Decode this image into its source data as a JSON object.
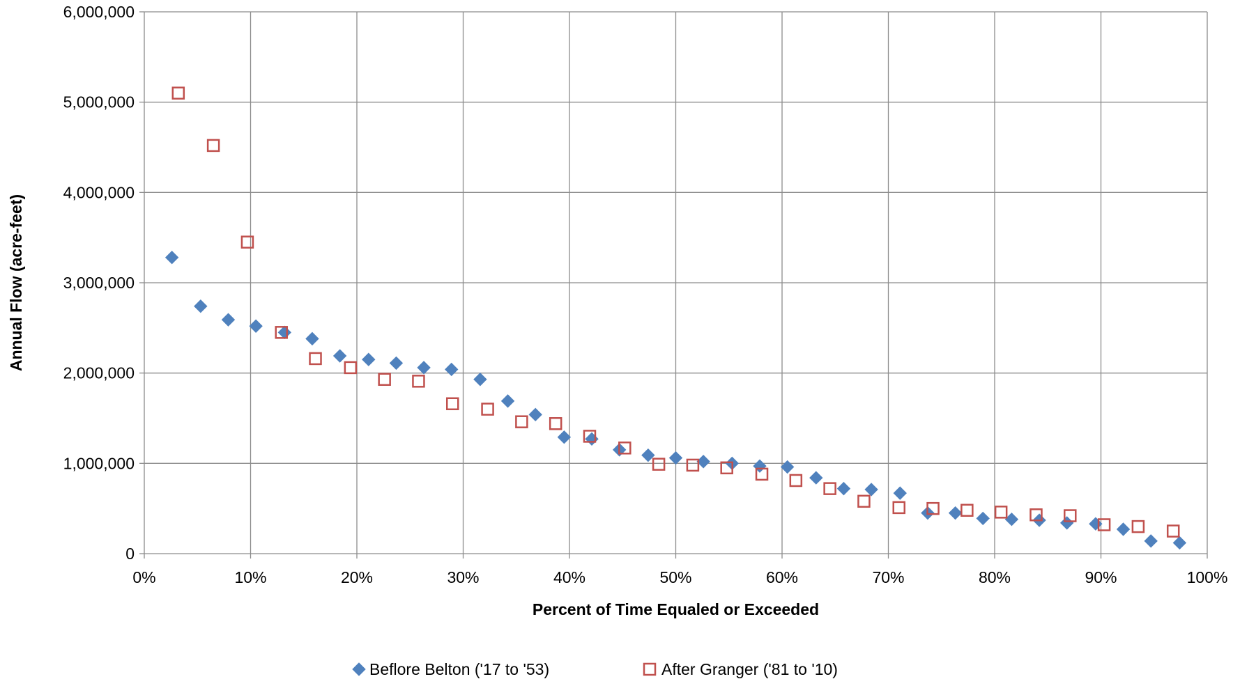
{
  "chart_data": {
    "type": "scatter",
    "xlabel": "Percent of Time Equaled or Exceeded",
    "ylabel": "Annual Flow (acre-feet)",
    "xlim": [
      0,
      100
    ],
    "ylim": [
      0,
      6000000
    ],
    "x_ticks": [
      "0%",
      "10%",
      "20%",
      "30%",
      "40%",
      "50%",
      "60%",
      "70%",
      "80%",
      "90%",
      "100%"
    ],
    "y_ticks": [
      "0",
      "1,000,000",
      "2,000,000",
      "3,000,000",
      "4,000,000",
      "5,000,000",
      "6,000,000"
    ],
    "grid": true,
    "legend_position": "bottom",
    "series": [
      {
        "name": "Beflore Belton ('17 to '53)",
        "marker": "diamond",
        "color": "#4F81BD",
        "points": [
          [
            2.6,
            3280000
          ],
          [
            5.3,
            2740000
          ],
          [
            7.9,
            2590000
          ],
          [
            10.5,
            2520000
          ],
          [
            13.2,
            2450000
          ],
          [
            15.8,
            2380000
          ],
          [
            18.4,
            2190000
          ],
          [
            21.1,
            2150000
          ],
          [
            23.7,
            2110000
          ],
          [
            26.3,
            2060000
          ],
          [
            28.9,
            2040000
          ],
          [
            31.6,
            1930000
          ],
          [
            34.2,
            1690000
          ],
          [
            36.8,
            1540000
          ],
          [
            39.5,
            1290000
          ],
          [
            42.1,
            1270000
          ],
          [
            44.7,
            1150000
          ],
          [
            47.4,
            1090000
          ],
          [
            50.0,
            1060000
          ],
          [
            52.6,
            1020000
          ],
          [
            55.3,
            1000000
          ],
          [
            57.9,
            970000
          ],
          [
            60.5,
            960000
          ],
          [
            63.2,
            840000
          ],
          [
            65.8,
            720000
          ],
          [
            68.4,
            710000
          ],
          [
            71.1,
            670000
          ],
          [
            73.7,
            450000
          ],
          [
            76.3,
            450000
          ],
          [
            78.9,
            390000
          ],
          [
            81.6,
            380000
          ],
          [
            84.2,
            370000
          ],
          [
            86.8,
            340000
          ],
          [
            89.5,
            330000
          ],
          [
            92.1,
            270000
          ],
          [
            94.7,
            140000
          ],
          [
            97.4,
            120000
          ]
        ]
      },
      {
        "name": "After Granger ('81 to '10)",
        "marker": "square",
        "color": "#C0504D",
        "points": [
          [
            3.2,
            5100000
          ],
          [
            6.5,
            4520000
          ],
          [
            9.7,
            3450000
          ],
          [
            12.9,
            2450000
          ],
          [
            16.1,
            2160000
          ],
          [
            19.4,
            2060000
          ],
          [
            22.6,
            1930000
          ],
          [
            25.8,
            1910000
          ],
          [
            29.0,
            1660000
          ],
          [
            32.3,
            1600000
          ],
          [
            35.5,
            1460000
          ],
          [
            38.7,
            1440000
          ],
          [
            41.9,
            1300000
          ],
          [
            45.2,
            1170000
          ],
          [
            48.4,
            990000
          ],
          [
            51.6,
            980000
          ],
          [
            54.8,
            950000
          ],
          [
            58.1,
            880000
          ],
          [
            61.3,
            810000
          ],
          [
            64.5,
            720000
          ],
          [
            67.7,
            580000
          ],
          [
            71.0,
            510000
          ],
          [
            74.2,
            500000
          ],
          [
            77.4,
            480000
          ],
          [
            80.6,
            460000
          ],
          [
            83.9,
            430000
          ],
          [
            87.1,
            420000
          ],
          [
            90.3,
            320000
          ],
          [
            93.5,
            300000
          ],
          [
            96.8,
            250000
          ]
        ]
      }
    ]
  }
}
